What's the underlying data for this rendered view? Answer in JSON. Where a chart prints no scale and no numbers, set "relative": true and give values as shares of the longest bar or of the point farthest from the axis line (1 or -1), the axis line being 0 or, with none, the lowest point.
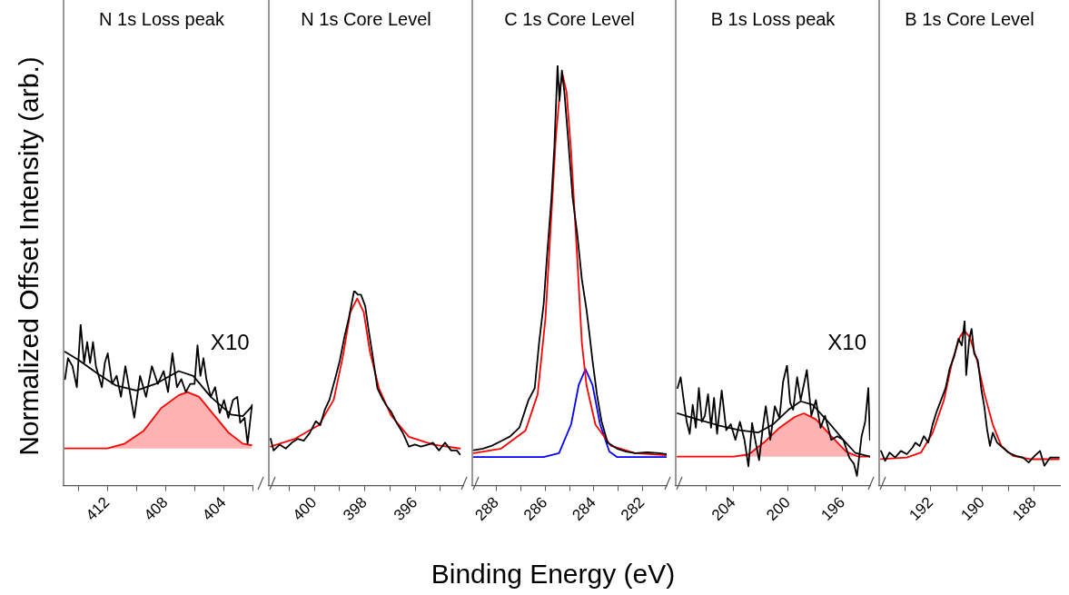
{
  "chart_data": [
    {
      "type": "line",
      "title": "N 1s Loss peak",
      "ylabel": "Normalized Offset Intensity (arb.)",
      "relative": true,
      "xlim": [
        415,
        402
      ],
      "xticks": [
        {
          "value": 414,
          "label": null
        },
        412,
        {
          "value": 410,
          "label": null
        },
        408,
        {
          "value": 406,
          "label": null
        },
        404,
        {
          "value": 402,
          "label": null
        }
      ],
      "annotations": [
        "X10"
      ],
      "series": [
        {
          "type": "line",
          "color": "#000000",
          "x": [
            414.9,
            414.7,
            414.39,
            414.09,
            413.83,
            413.59,
            413.38,
            413.18,
            412.98,
            412.78,
            412.37,
            412.17,
            411.97,
            411.67,
            411.36,
            411.06,
            410.76,
            410.45,
            410.15,
            409.75,
            409.34,
            408.94,
            408.53,
            408.13,
            407.83,
            407.53,
            407.22,
            406.92,
            406.61,
            406.31,
            406.01,
            405.81,
            405.61,
            405.4,
            405.2,
            404.9,
            404.6,
            404.29,
            403.99,
            403.69,
            403.38,
            403.08,
            402.88,
            402.58,
            402.37,
            402.07
          ],
          "values": [
            0.66,
            0.79,
            0.74,
            0.61,
            1,
            0.76,
            0.89,
            0.76,
            0.89,
            0.74,
            0.61,
            0.76,
            0.82,
            0.63,
            0.68,
            0.55,
            0.74,
            0.58,
            0.42,
            0.68,
            0.55,
            0.74,
            0.63,
            0.71,
            0.58,
            0.82,
            0.61,
            0.66,
            0.58,
            0.63,
            0.63,
            0.87,
            0.68,
            0.79,
            0.66,
            0.55,
            0.61,
            0.45,
            0.53,
            0.42,
            0.53,
            0.55,
            0.39,
            0.42,
            0.26,
            0.5
          ]
        },
        {
          "type": "line",
          "color": "#000000",
          "x": [
            414.9,
            414.0,
            412.6,
            411.4,
            410.0,
            408.7,
            407.1,
            406.1,
            404.9,
            403.5,
            402.7,
            402.1
          ],
          "values": [
            0.83,
            0.78,
            0.69,
            0.62,
            0.59,
            0.63,
            0.71,
            0.68,
            0.55,
            0.44,
            0.43,
            0.49
          ]
        },
        {
          "type": "area",
          "color": "#ff0000",
          "x": [
            414.9,
            412.0,
            410.8,
            409.5,
            408.3,
            407.1,
            406.5,
            405.7,
            404.7,
            403.7,
            402.7,
            402.1
          ],
          "values": [
            0.23,
            0.23,
            0.26,
            0.34,
            0.48,
            0.56,
            0.58,
            0.55,
            0.44,
            0.33,
            0.26,
            0.25
          ]
        }
      ]
    },
    {
      "type": "line",
      "title": "N 1s Core Level",
      "relative": true,
      "xlim": [
        401.8,
        394.1
      ],
      "xticks": [
        {
          "value": 401,
          "label": null
        },
        400,
        {
          "value": 399,
          "label": null
        },
        398,
        {
          "value": 397,
          "label": null
        },
        396,
        {
          "value": 395,
          "label": null
        }
      ],
      "series": [
        {
          "type": "line",
          "color": "#000000",
          "x": [
            401.73,
            401.61,
            401.37,
            401.13,
            400.89,
            400.65,
            400.42,
            400.18,
            399.94,
            399.76,
            399.58,
            399.4,
            399.17,
            398.99,
            398.81,
            398.63,
            398.42,
            398.27,
            398.15,
            397.98,
            397.86,
            397.68,
            397.5,
            397.32,
            397.14,
            396.96,
            396.73,
            396.49,
            396.25,
            396.01,
            395.77,
            395.48,
            395.3,
            395.06,
            394.82,
            394.58,
            394.35,
            394.23
          ],
          "values": [
            0.24,
            0.18,
            0.21,
            0.19,
            0.22,
            0.24,
            0.23,
            0.27,
            0.33,
            0.31,
            0.39,
            0.44,
            0.55,
            0.64,
            0.76,
            0.86,
            1,
            0.98,
            0.98,
            0.92,
            0.81,
            0.66,
            0.5,
            0.45,
            0.41,
            0.38,
            0.32,
            0.27,
            0.2,
            0.21,
            0.2,
            0.21,
            0.22,
            0.18,
            0.22,
            0.18,
            0.18,
            0.16
          ]
        },
        {
          "type": "line",
          "color": "#ff0000",
          "x": [
            401.73,
            400.77,
            399.82,
            399.23,
            398.87,
            398.57,
            398.3,
            398.04,
            397.8,
            397.44,
            396.96,
            396.25,
            395.3,
            394.23
          ],
          "values": [
            0.2,
            0.24,
            0.31,
            0.44,
            0.66,
            0.89,
            0.96,
            0.89,
            0.69,
            0.5,
            0.36,
            0.25,
            0.21,
            0.19
          ]
        }
      ]
    },
    {
      "type": "line",
      "title": "C 1s Core Level",
      "xlabel": "Binding Energy (eV)",
      "relative": true,
      "xlim": [
        289,
        281
      ],
      "xticks": [
        288,
        {
          "value": 287,
          "label": null
        },
        286,
        {
          "value": 285,
          "label": null
        },
        284,
        {
          "value": 283,
          "label": null
        },
        282
      ],
      "series": [
        {
          "type": "line",
          "color": "#000000",
          "x": [
            288.94,
            288.56,
            288.19,
            287.81,
            287.44,
            287.06,
            286.69,
            286.43,
            286.25,
            286.06,
            285.93,
            285.74,
            285.62,
            285.49,
            285.41,
            285.31,
            285.21,
            285.06,
            284.87,
            284.68,
            284.49,
            284.3,
            284.18,
            284.05,
            283.87,
            283.68,
            283.43,
            283.05,
            282.67,
            282.3,
            281.8,
            281.3,
            281.0
          ],
          "values": [
            0.084,
            0.088,
            0.095,
            0.106,
            0.117,
            0.138,
            0.203,
            0.232,
            0.34,
            0.433,
            0.541,
            0.685,
            0.808,
            1,
            0.916,
            0.988,
            0.937,
            0.829,
            0.685,
            0.599,
            0.491,
            0.419,
            0.362,
            0.297,
            0.217,
            0.153,
            0.102,
            0.088,
            0.081,
            0.077,
            0.079,
            0.077,
            0.075
          ]
        },
        {
          "type": "line",
          "color": "#ff0000",
          "x": [
            288.94,
            287.81,
            286.81,
            286.31,
            285.99,
            285.81,
            285.56,
            285.37,
            285.28,
            285.12,
            284.93,
            284.68,
            284.49,
            284.3,
            283.93,
            283.3,
            282.3,
            281.0
          ],
          "values": [
            0.077,
            0.088,
            0.131,
            0.217,
            0.397,
            0.577,
            0.829,
            0.952,
            0.977,
            0.937,
            0.793,
            0.541,
            0.34,
            0.239,
            0.145,
            0.095,
            0.077,
            0.072
          ]
        },
        {
          "type": "line",
          "color": "#0000ff",
          "x": [
            288.94,
            286.06,
            285.43,
            284.93,
            284.62,
            284.34,
            284.05,
            283.74,
            283.36,
            283.05,
            281.0
          ],
          "values": [
            0.068,
            0.068,
            0.077,
            0.146,
            0.239,
            0.277,
            0.239,
            0.146,
            0.081,
            0.068,
            0.068
          ]
        }
      ]
    },
    {
      "type": "line",
      "title": "B 1s Loss peak",
      "relative": true,
      "xlim": [
        208.2,
        194
      ],
      "xticks": [
        {
          "value": 206,
          "label": null
        },
        204,
        {
          "value": 202,
          "label": null
        },
        200,
        {
          "value": 198,
          "label": null
        },
        196
      ],
      "annotations": [
        "X10"
      ],
      "series": [
        {
          "type": "line",
          "color": "#000000",
          "x": [
            208.07,
            207.84,
            207.62,
            207.4,
            207.18,
            206.96,
            206.73,
            206.51,
            206.29,
            206.07,
            205.84,
            205.62,
            205.4,
            205.18,
            204.84,
            204.51,
            204.18,
            203.84,
            203.51,
            203.18,
            202.89,
            202.62,
            202.36,
            202.11,
            201.84,
            201.62,
            201.29,
            200.96,
            200.62,
            200.36,
            200.07,
            199.84,
            199.62,
            199.33,
            199.07,
            198.62,
            198.29,
            197.96,
            197.62,
            197.29,
            196.84,
            196.4,
            195.96,
            195.51,
            195.18,
            194.96,
            194.62,
            194.36,
            194.13,
            194.01
          ],
          "values": [
            0.81,
            0.9,
            0.71,
            0.53,
            0.43,
            0.67,
            0.48,
            0.81,
            0.53,
            0.58,
            0.76,
            0.48,
            0.73,
            0.43,
            0.79,
            0.46,
            0.51,
            0.38,
            0.53,
            0.38,
            0.16,
            0.52,
            0.36,
            0.21,
            0.48,
            0.66,
            0.38,
            0.66,
            0.56,
            0.86,
            1,
            0.69,
            0.63,
            0.9,
            0.71,
            0.96,
            0.58,
            0.71,
            0.48,
            0.58,
            0.38,
            0.41,
            0.38,
            0.23,
            0.18,
            0.08,
            0.41,
            0.53,
            0.81,
            0.38
          ]
        },
        {
          "type": "line",
          "color": "#000000",
          "x": [
            208.07,
            206.62,
            205.07,
            203.51,
            202.18,
            201.07,
            199.96,
            199.07,
            198.18,
            197.07,
            195.96,
            195.07,
            194.01
          ],
          "values": [
            0.6,
            0.55,
            0.5,
            0.46,
            0.44,
            0.51,
            0.63,
            0.7,
            0.67,
            0.53,
            0.38,
            0.27,
            0.24
          ]
        },
        {
          "type": "area",
          "color": "#ff0000",
          "x": [
            208.07,
            203.96,
            202.84,
            201.73,
            200.62,
            199.51,
            198.84,
            197.96,
            196.84,
            195.73,
            194.84,
            194.01
          ],
          "values": [
            0.24,
            0.24,
            0.26,
            0.36,
            0.48,
            0.57,
            0.6,
            0.55,
            0.41,
            0.28,
            0.24,
            0.24
          ]
        }
      ]
    },
    {
      "type": "line",
      "title": "B 1s Core Level",
      "relative": true,
      "xlim": [
        194,
        187
      ],
      "xticks": [
        {
          "value": 193,
          "label": null
        },
        192,
        {
          "value": 191,
          "label": null
        },
        190,
        {
          "value": 189,
          "label": null
        },
        188
      ],
      "series": [
        {
          "type": "line",
          "color": "#000000",
          "x": [
            193.93,
            193.77,
            193.6,
            193.38,
            193.16,
            192.93,
            192.71,
            192.6,
            192.43,
            192.27,
            192.1,
            191.93,
            191.77,
            191.6,
            191.43,
            191.27,
            191.1,
            190.93,
            190.8,
            190.69,
            190.63,
            190.51,
            190.42,
            190.32,
            190.18,
            190.04,
            189.93,
            189.82,
            189.71,
            189.6,
            189.43,
            189.21,
            188.99,
            188.71,
            188.43,
            188.21,
            188.04,
            187.77,
            187.6,
            187.38,
            187.04
          ],
          "values": [
            0.21,
            0.15,
            0.2,
            0.17,
            0.21,
            0.19,
            0.23,
            0.26,
            0.24,
            0.3,
            0.26,
            0.37,
            0.45,
            0.52,
            0.59,
            0.71,
            0.78,
            0.89,
            0.85,
            1,
            0.67,
            0.89,
            0.95,
            0.8,
            0.76,
            0.58,
            0.48,
            0.34,
            0.24,
            0.32,
            0.26,
            0.23,
            0.2,
            0.18,
            0.17,
            0.14,
            0.17,
            0.21,
            0.12,
            0.17,
            0.17
          ]
        },
        {
          "type": "line",
          "color": "#ff0000",
          "x": [
            193.93,
            192.93,
            192.38,
            191.93,
            191.49,
            191.16,
            190.88,
            190.71,
            190.49,
            190.21,
            189.93,
            189.6,
            189.27,
            188.82,
            188.16,
            187.04
          ],
          "values": [
            0.16,
            0.17,
            0.2,
            0.32,
            0.52,
            0.76,
            0.9,
            0.94,
            0.9,
            0.76,
            0.56,
            0.37,
            0.24,
            0.18,
            0.16,
            0.16
          ]
        }
      ]
    }
  ]
}
